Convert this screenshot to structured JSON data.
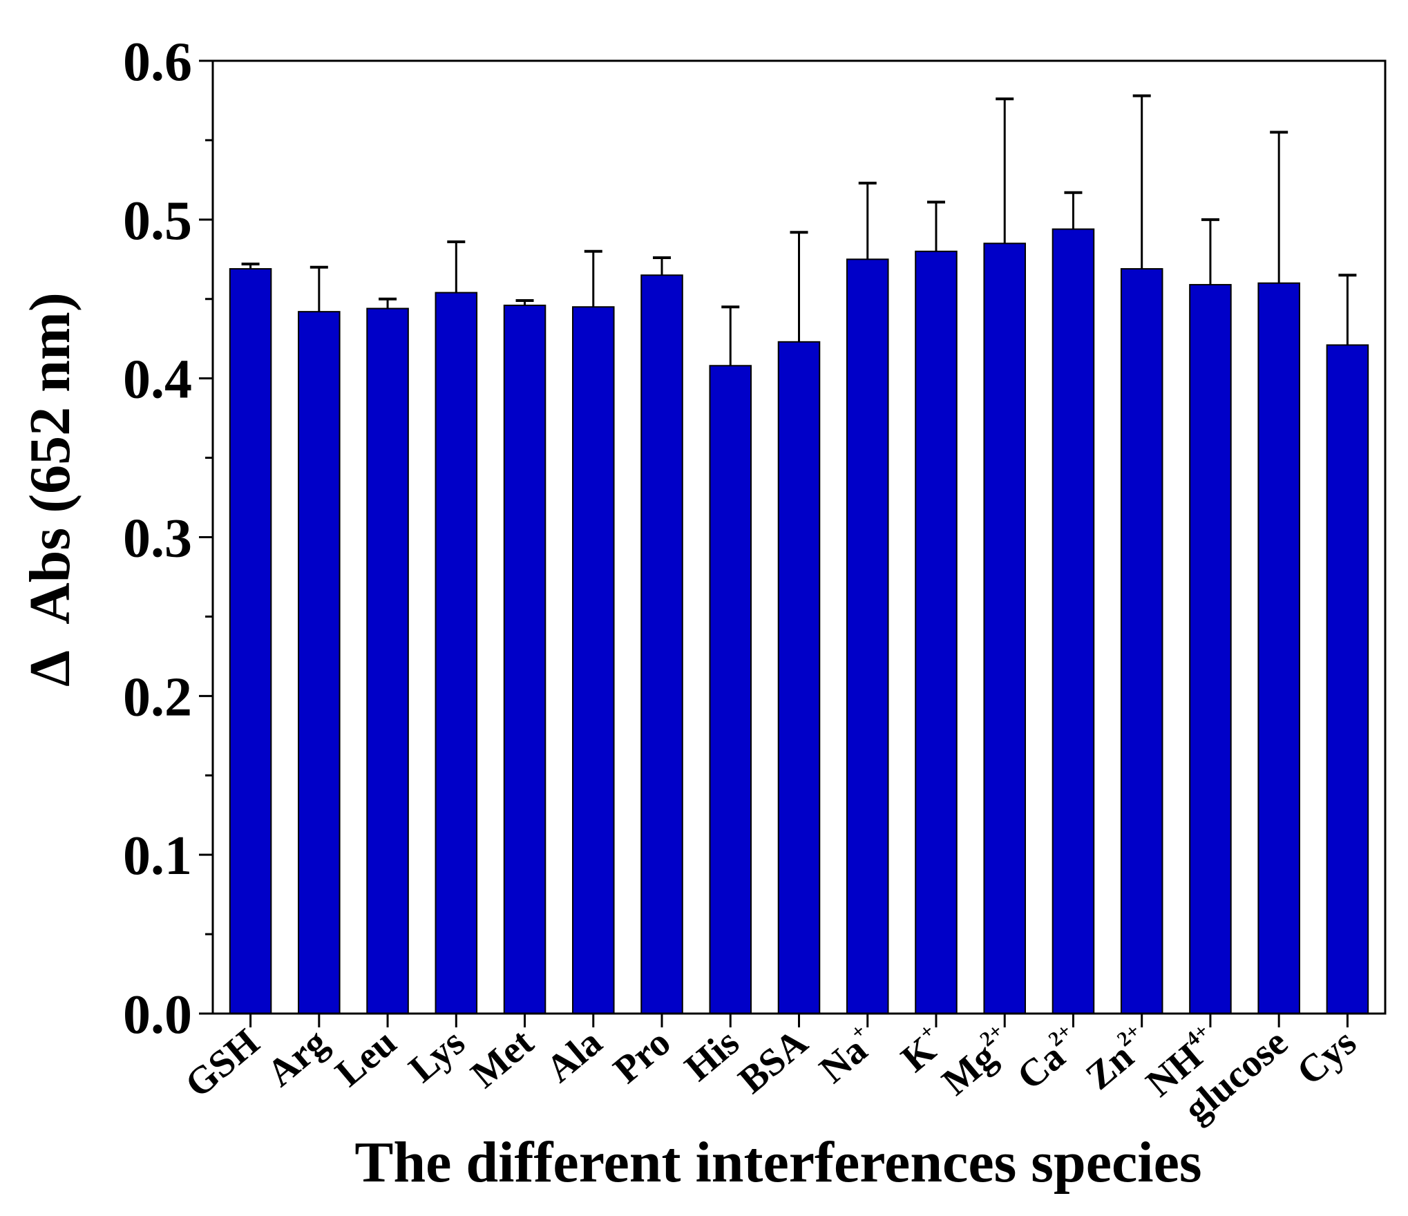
{
  "chart_data": {
    "type": "bar",
    "title": "",
    "xlabel": "The different interferences species",
    "ylabel": "Δ  Abs (652 nm)",
    "ylim": [
      0,
      0.6
    ],
    "yticks": [
      "0.0",
      "0.1",
      "0.2",
      "0.3",
      "0.4",
      "0.5",
      "0.6"
    ],
    "grid": false,
    "legend": "none",
    "categories": [
      {
        "label": "GSH",
        "sup": ""
      },
      {
        "label": "Arg",
        "sup": ""
      },
      {
        "label": "Leu",
        "sup": ""
      },
      {
        "label": "Lys",
        "sup": ""
      },
      {
        "label": "Met",
        "sup": ""
      },
      {
        "label": "Ala",
        "sup": ""
      },
      {
        "label": "Pro",
        "sup": ""
      },
      {
        "label": "His",
        "sup": ""
      },
      {
        "label": "BSA",
        "sup": ""
      },
      {
        "label": "Na",
        "sup": "+"
      },
      {
        "label": "K",
        "sup": "+"
      },
      {
        "label": "Mg",
        "sup": "2+"
      },
      {
        "label": "Ca",
        "sup": "2+"
      },
      {
        "label": "Zn",
        "sup": "2+"
      },
      {
        "label": "NH",
        "sup": "4+"
      },
      {
        "label": "glucose",
        "sup": ""
      },
      {
        "label": "Cys",
        "sup": ""
      }
    ],
    "values": [
      0.469,
      0.442,
      0.444,
      0.454,
      0.446,
      0.445,
      0.465,
      0.408,
      0.423,
      0.475,
      0.48,
      0.485,
      0.494,
      0.469,
      0.459,
      0.46,
      0.421
    ],
    "errors": [
      0.003,
      0.028,
      0.006,
      0.032,
      0.003,
      0.035,
      0.011,
      0.037,
      0.069,
      0.048,
      0.031,
      0.091,
      0.023,
      0.109,
      0.041,
      0.095,
      0.044
    ],
    "colors": {
      "bar": "#0000c8",
      "edge": "#000000",
      "axis": "#000000"
    }
  }
}
